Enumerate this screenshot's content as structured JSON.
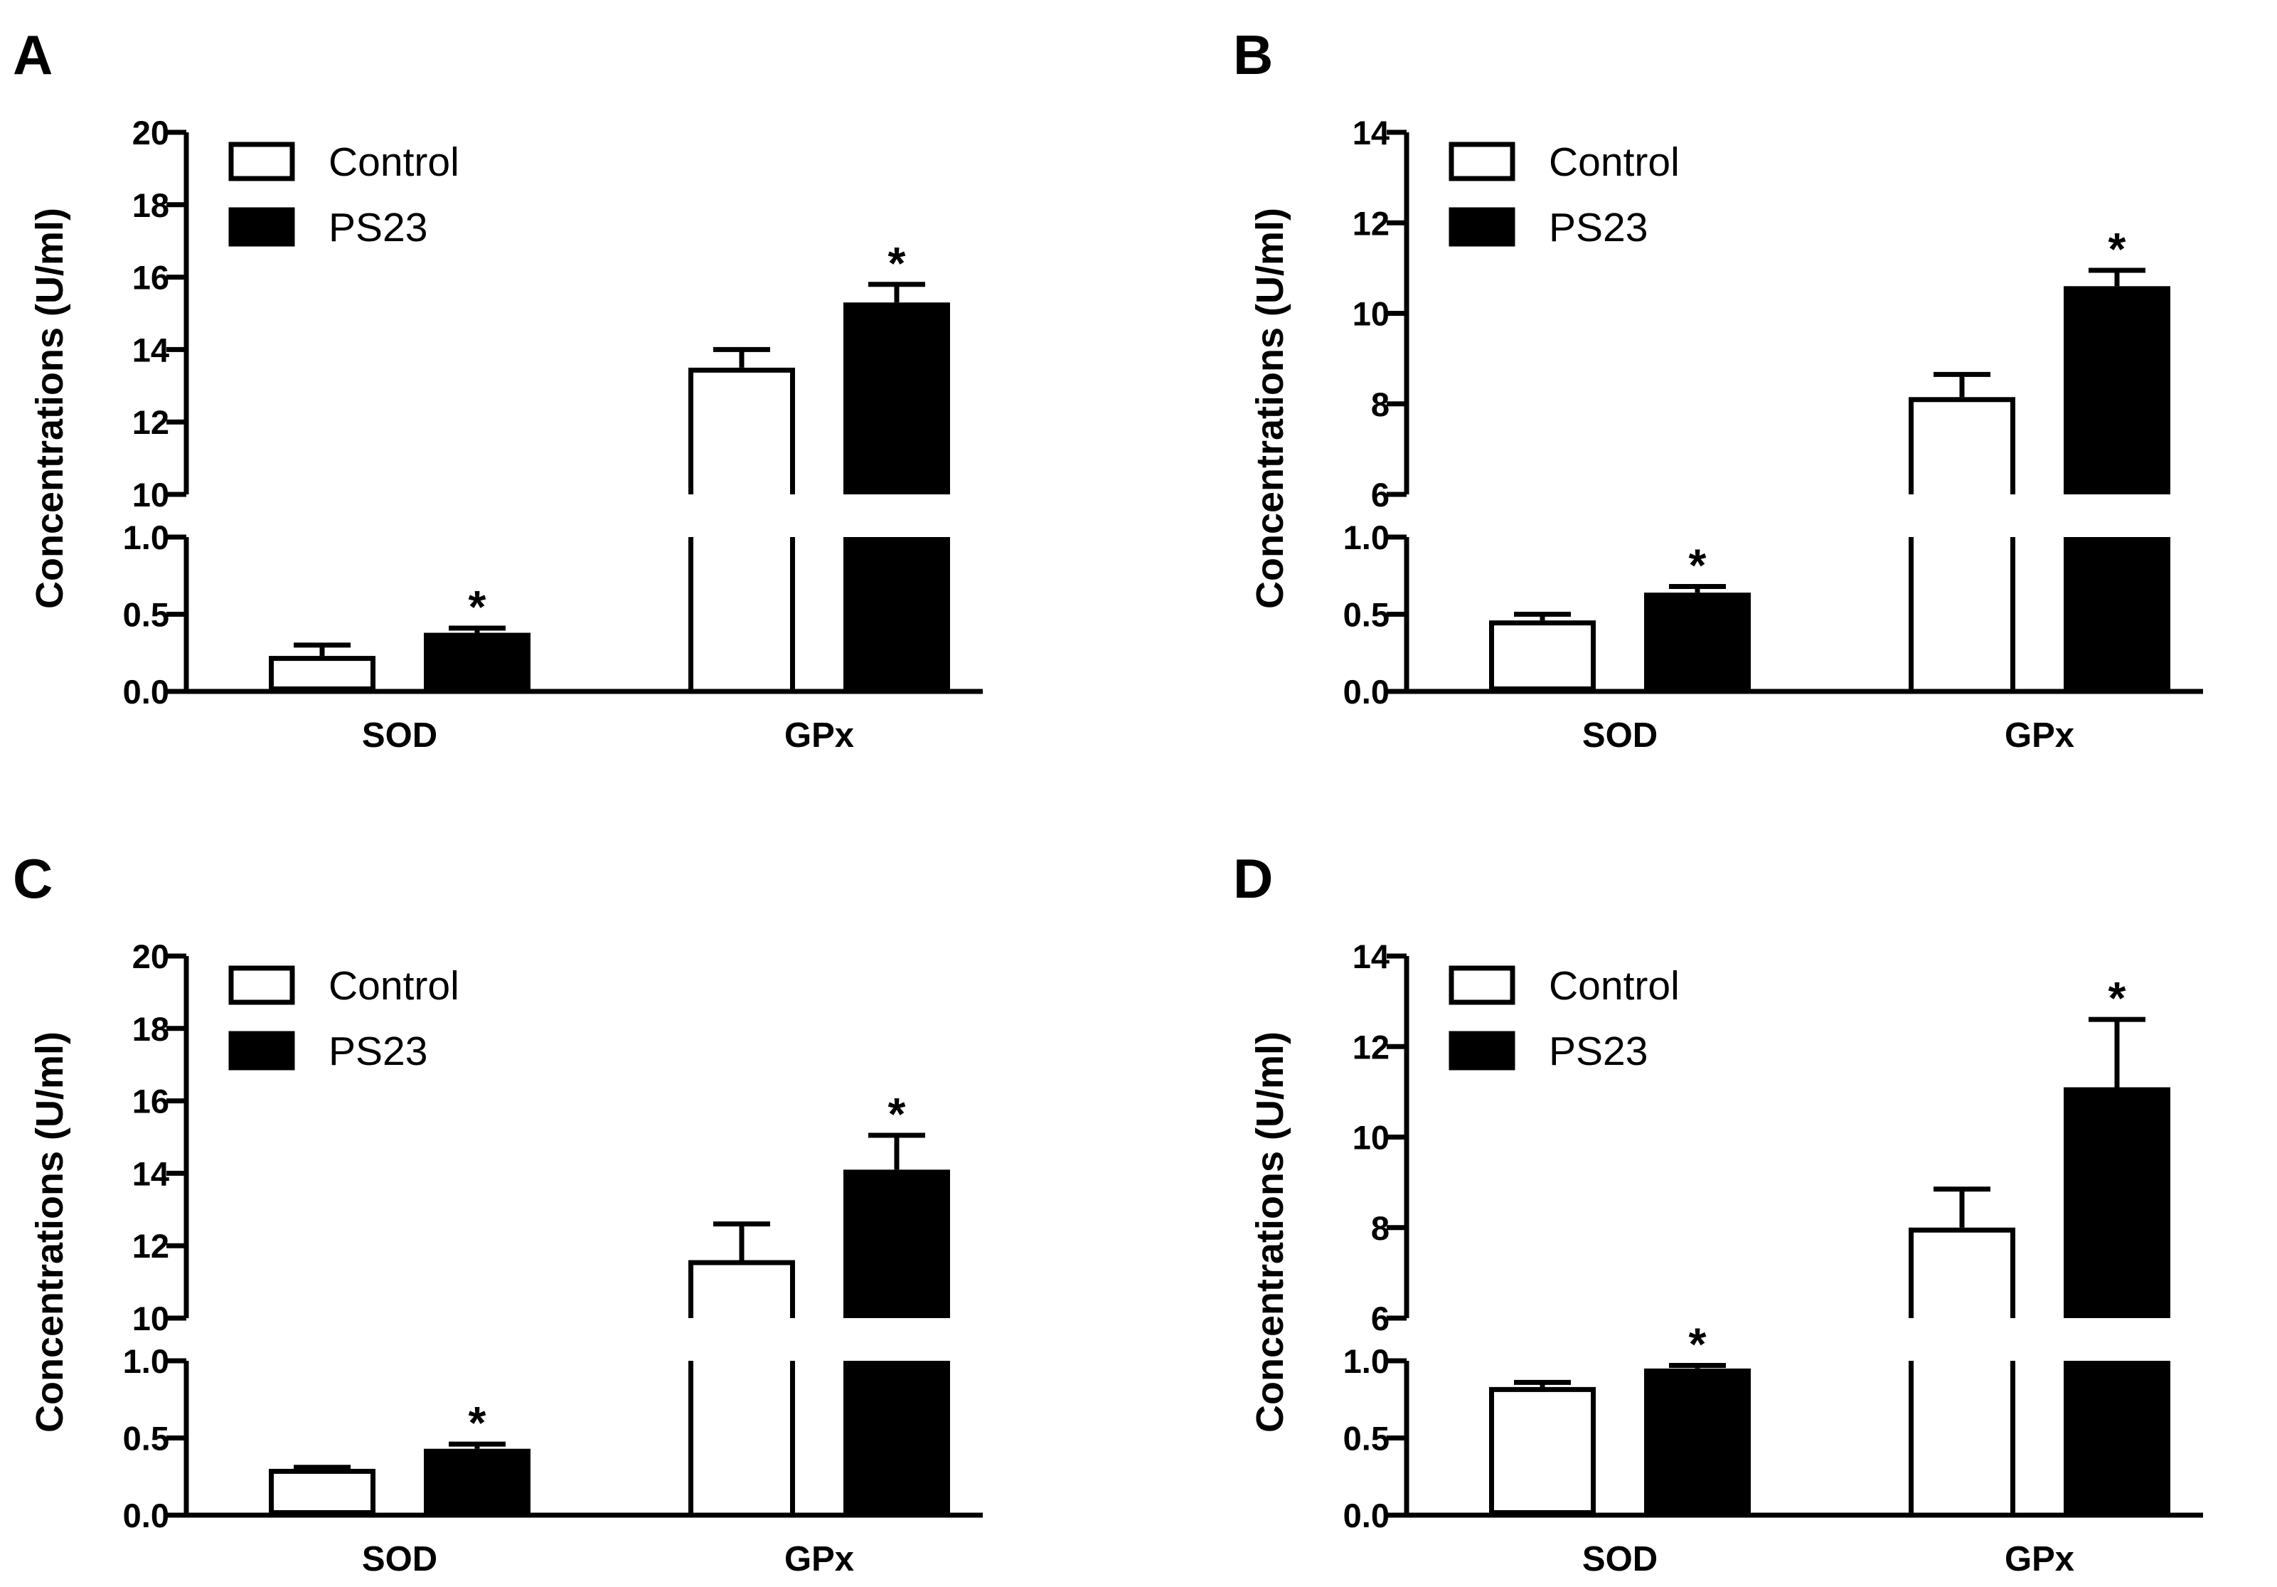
{
  "chart_data": [
    {
      "panel": "A",
      "type": "bar",
      "ylabel": "Concentrations (U/ml)",
      "categories": [
        "SOD",
        "GPx"
      ],
      "broken_axis": {
        "lower": {
          "ylim": [
            0,
            1.0
          ],
          "ticks": [
            "0.0",
            "0.5",
            "1.0"
          ]
        },
        "upper": {
          "ylim": [
            10,
            20
          ],
          "ticks": [
            "10",
            "12",
            "14",
            "16",
            "18",
            "20"
          ]
        }
      },
      "legend": {
        "position": "top-left",
        "entries": [
          "Control",
          "PS23"
        ]
      },
      "series": [
        {
          "name": "Control",
          "fill": "#ffffff",
          "values": [
            0.23,
            13.5
          ],
          "errors": [
            0.07,
            0.5
          ]
        },
        {
          "name": "PS23",
          "fill": "#000000",
          "values": [
            0.38,
            15.3
          ],
          "errors": [
            0.03,
            0.5
          ]
        }
      ],
      "significance": [
        {
          "category": "SOD",
          "series": "PS23",
          "mark": "*"
        },
        {
          "category": "GPx",
          "series": "PS23",
          "mark": "*"
        }
      ]
    },
    {
      "panel": "B",
      "type": "bar",
      "ylabel": "Concentrations (U/ml)",
      "categories": [
        "SOD",
        "GPx"
      ],
      "broken_axis": {
        "lower": {
          "ylim": [
            0,
            1.0
          ],
          "ticks": [
            "0.0",
            "0.5",
            "1.0"
          ]
        },
        "upper": {
          "ylim": [
            6,
            14
          ],
          "ticks": [
            "6",
            "8",
            "10",
            "12",
            "14"
          ]
        }
      },
      "legend": {
        "position": "top-left",
        "entries": [
          "Control",
          "PS23"
        ]
      },
      "series": [
        {
          "name": "Control",
          "fill": "#ffffff",
          "values": [
            0.46,
            8.15
          ],
          "errors": [
            0.04,
            0.5
          ]
        },
        {
          "name": "PS23",
          "fill": "#000000",
          "values": [
            0.64,
            10.6
          ],
          "errors": [
            0.04,
            0.35
          ]
        }
      ],
      "significance": [
        {
          "category": "SOD",
          "series": "PS23",
          "mark": "*"
        },
        {
          "category": "GPx",
          "series": "PS23",
          "mark": "*"
        }
      ]
    },
    {
      "panel": "C",
      "type": "bar",
      "ylabel": "Concentrations (U/ml)",
      "categories": [
        "SOD",
        "GPx"
      ],
      "broken_axis": {
        "lower": {
          "ylim": [
            0,
            1.0
          ],
          "ticks": [
            "0.0",
            "0.5",
            "1.0"
          ]
        },
        "upper": {
          "ylim": [
            10,
            20
          ],
          "ticks": [
            "10",
            "12",
            "14",
            "16",
            "18",
            "20"
          ]
        }
      },
      "legend": {
        "position": "top-left",
        "entries": [
          "Control",
          "PS23"
        ]
      },
      "series": [
        {
          "name": "Control",
          "fill": "#ffffff",
          "values": [
            0.3,
            11.6
          ],
          "errors": [
            0.01,
            1.0
          ]
        },
        {
          "name": "PS23",
          "fill": "#000000",
          "values": [
            0.43,
            14.1
          ],
          "errors": [
            0.03,
            0.95
          ]
        }
      ],
      "significance": [
        {
          "category": "SOD",
          "series": "PS23",
          "mark": "*"
        },
        {
          "category": "GPx",
          "series": "PS23",
          "mark": "*"
        }
      ]
    },
    {
      "panel": "D",
      "type": "bar",
      "ylabel": "Concentrations (U/ml)",
      "categories": [
        "SOD",
        "GPx"
      ],
      "broken_axis": {
        "lower": {
          "ylim": [
            0,
            1.0
          ],
          "ticks": [
            "0.0",
            "0.5",
            "1.0"
          ]
        },
        "upper": {
          "ylim": [
            6,
            14
          ],
          "ticks": [
            "6",
            "8",
            "10",
            "12",
            "14"
          ]
        }
      },
      "legend": {
        "position": "top-left",
        "entries": [
          "Control",
          "PS23"
        ]
      },
      "series": [
        {
          "name": "Control",
          "fill": "#ffffff",
          "values": [
            0.83,
            8.0
          ],
          "errors": [
            0.03,
            0.85
          ]
        },
        {
          "name": "PS23",
          "fill": "#000000",
          "values": [
            0.95,
            11.1
          ],
          "errors": [
            0.02,
            1.5
          ]
        }
      ],
      "significance": [
        {
          "category": "SOD",
          "series": "PS23",
          "mark": "*"
        },
        {
          "category": "GPx",
          "series": "PS23",
          "mark": "*"
        }
      ]
    }
  ]
}
